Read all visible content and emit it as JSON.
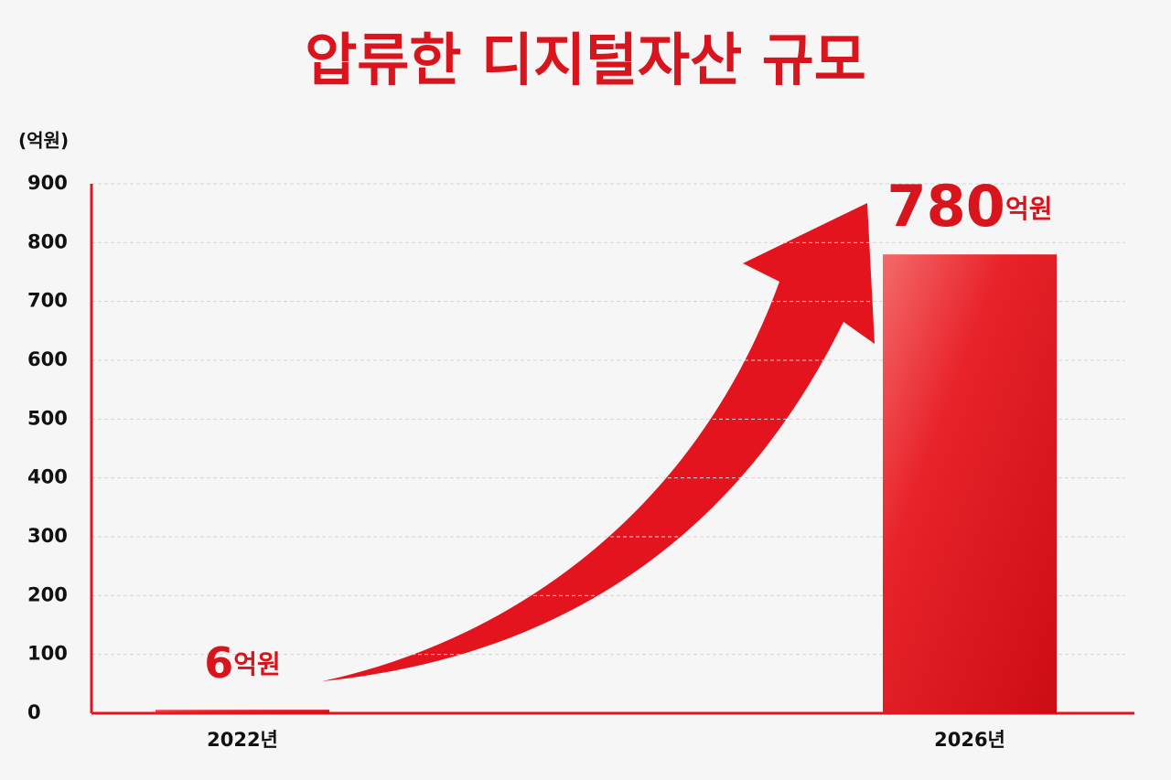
{
  "chart_data": {
    "type": "bar",
    "title": "압류한 디지털자산 규모",
    "unit_label": "(억원)",
    "categories": [
      "2022년",
      "2026년"
    ],
    "values": [
      6,
      780
    ],
    "value_labels": [
      "6억원",
      "780억원"
    ],
    "color": "#e3141e",
    "ylim": [
      0,
      900
    ],
    "yticks": [
      0,
      100,
      200,
      300,
      400,
      500,
      600,
      700,
      800,
      900
    ],
    "grid": true
  }
}
